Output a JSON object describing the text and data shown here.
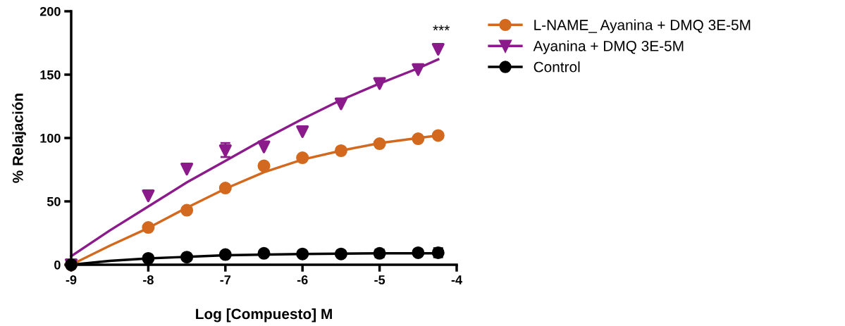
{
  "chart_data": {
    "type": "scatter",
    "xlabel": "Log [Compuesto] M",
    "ylabel": "% Relajación",
    "xlim": [
      -9,
      -4
    ],
    "xticks": [
      -9,
      -8,
      -7,
      -6,
      -5,
      -4
    ],
    "ylim": [
      0,
      200
    ],
    "yticks": [
      0,
      50,
      100,
      150,
      200
    ],
    "grid": false,
    "legend": "top right",
    "annotations": [
      "***"
    ],
    "series": [
      {
        "name": "L-NAME_ Ayanina + DMQ 3E-5M",
        "color": "#d2691e",
        "marker": "circle",
        "x": [
          -9,
          -8,
          -7.5,
          -7,
          -6.5,
          -6,
          -5.5,
          -5,
          -4.5,
          -4.24
        ],
        "values": [
          0,
          29.4,
          43,
          60.5,
          78,
          84.4,
          90,
          95.5,
          99.4,
          102
        ]
      },
      {
        "name": "Ayanina + DMQ 3E-5M",
        "color": "#8b1a8b",
        "marker": "triangle",
        "x": [
          -9,
          -8,
          -7.5,
          -7,
          -6.5,
          -6,
          -5.5,
          -5,
          -4.5,
          -4.24
        ],
        "values": [
          0,
          54.4,
          75.5,
          90,
          93,
          105,
          127,
          143,
          154,
          170
        ],
        "errors": [
          null,
          null,
          null,
          [
            85,
            96
          ],
          null,
          null,
          null,
          null,
          null,
          null
        ]
      },
      {
        "name": "Control",
        "color": "#000000",
        "marker": "circle",
        "x": [
          -9,
          -8,
          -7.5,
          -7,
          -6.5,
          -6,
          -5.5,
          -5,
          -4.5,
          -4.24
        ],
        "values": [
          0,
          5,
          6,
          8,
          9,
          8.5,
          8.5,
          9,
          9.5,
          9.5
        ],
        "errors": [
          null,
          null,
          null,
          null,
          null,
          null,
          null,
          [
            6,
            12
          ],
          null,
          [
            6,
            13
          ]
        ]
      },
      {
        "type": "line",
        "color": "#d2691e",
        "marker": "none",
        "x": [
          -9,
          -8.5,
          -8,
          -7.5,
          -7,
          -6.5,
          -6,
          -5.5,
          -5,
          -4.5,
          -4.24
        ],
        "values": [
          0,
          15,
          29,
          45,
          60,
          73,
          83,
          90,
          96,
          100,
          102
        ]
      },
      {
        "type": "line",
        "color": "#8b1a8b",
        "marker": "none",
        "x": [
          -9,
          -8.5,
          -8,
          -7.5,
          -7,
          -6.5,
          -6,
          -5.5,
          -5,
          -4.5,
          -4.24
        ],
        "values": [
          6.7,
          27,
          46,
          65,
          82,
          99,
          115,
          130,
          143,
          155,
          162
        ]
      },
      {
        "type": "line",
        "color": "#000000",
        "marker": "none",
        "x": [
          -9,
          -8.5,
          -8,
          -7,
          -6,
          -5,
          -4.24
        ],
        "values": [
          0,
          3,
          5,
          7.5,
          8.5,
          9,
          9
        ]
      }
    ]
  }
}
